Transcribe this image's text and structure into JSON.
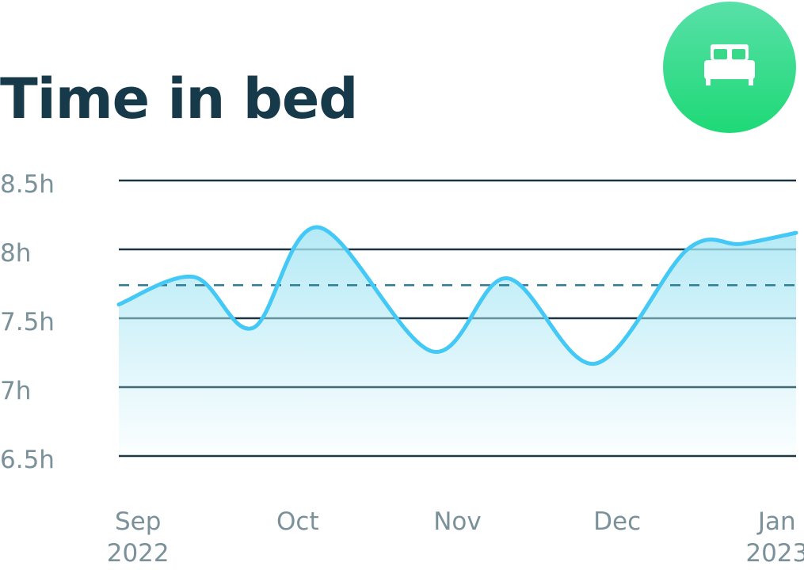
{
  "chart_data": {
    "type": "area",
    "title": "Time in bed",
    "y_tick_labels": [
      "8.5h",
      "8h",
      "7.5h",
      "7h",
      "6.5h"
    ],
    "y_ticks": [
      8.5,
      8.0,
      7.5,
      7.0,
      6.5
    ],
    "ylim": [
      6.5,
      8.5
    ],
    "x_ticks": [
      {
        "label": "Sep",
        "sublabel": "2022",
        "x": 0
      },
      {
        "label": "Oct",
        "sublabel": "",
        "x": 1
      },
      {
        "label": "Nov",
        "sublabel": "",
        "x": 2
      },
      {
        "label": "Dec",
        "sublabel": "",
        "x": 3
      },
      {
        "label": "Jan",
        "sublabel": "2023",
        "x": 4
      }
    ],
    "xlim": [
      -0.12,
      4.12
    ],
    "average": 7.74,
    "series": [
      {
        "x": [
          -0.12,
          0.35,
          0.72,
          1.13,
          1.84,
          2.31,
          2.86,
          3.44,
          3.78,
          4.12
        ],
        "values": [
          7.6,
          7.8,
          7.43,
          8.16,
          7.26,
          7.79,
          7.17,
          8.0,
          8.04,
          8.12
        ]
      }
    ],
    "grid": true,
    "legend": "none",
    "colors": {
      "line": "#44c8f5",
      "fill": "#a7e6f4",
      "grid": "#1b3440",
      "average": "#2e7e9a"
    }
  },
  "badge": {
    "icon": "bed-icon",
    "color": "#1ed976"
  }
}
